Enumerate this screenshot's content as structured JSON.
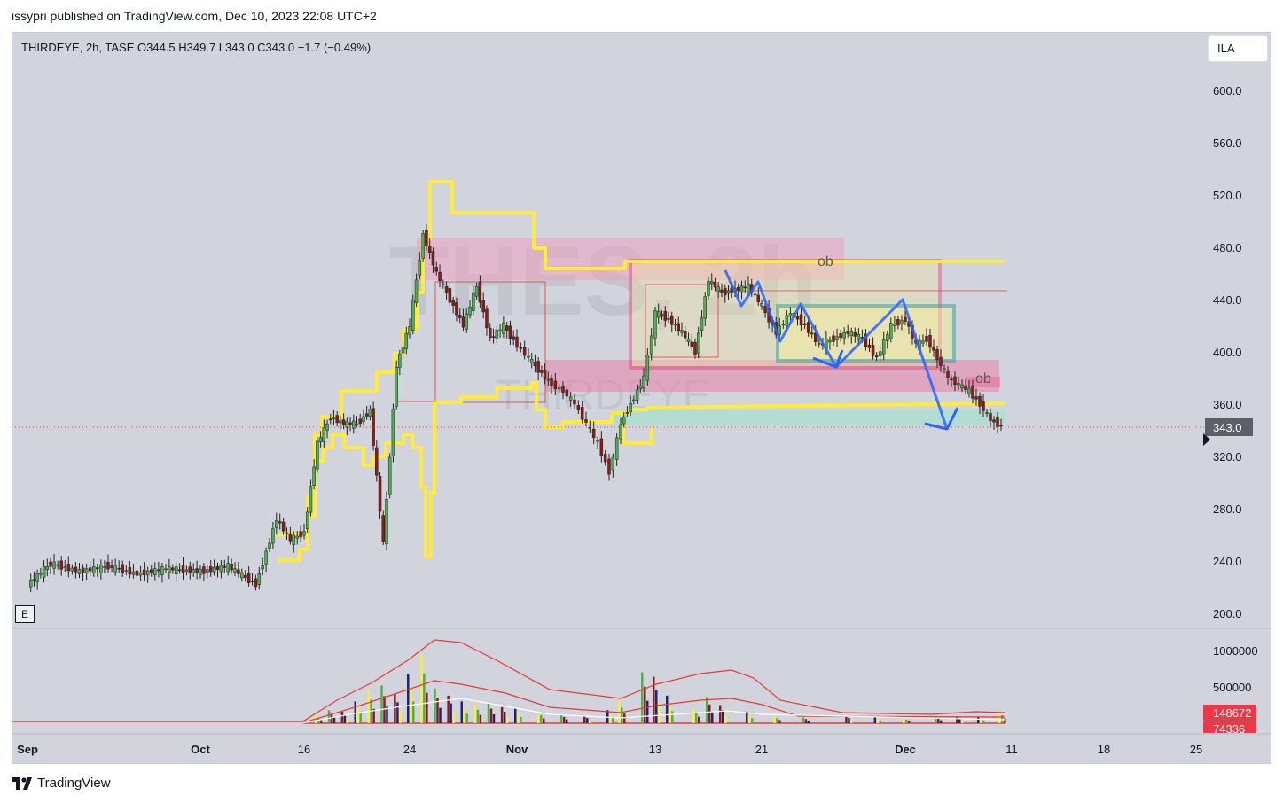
{
  "header": {
    "published": "issypri published on TradingView.com, Dec 10, 2023 22:08 UTC+2"
  },
  "legend": {
    "text": "THIRDEYE, 2h, TASE  O344.5  H349.7  L343.0  C343.0  −1.7 (−0.49%)"
  },
  "currency": "ILA",
  "e_button": "E",
  "brand": "TradingView",
  "watermark": {
    "big": "THES, 2h",
    "small": "THIRDEYE"
  },
  "colors": {
    "background": "#d1d4dc",
    "yellow": "#ffeb3b",
    "up": "#4caf50",
    "down": "#8b1a1a",
    "arrow": "#2962ff",
    "pink": "#e91e63",
    "teal": "#26a69a",
    "ma": "#e53935"
  },
  "annotations": {
    "ob1": "ob",
    "ob2": "ob"
  },
  "chart_data": {
    "type": "candlestick",
    "price_axis": {
      "ticks": [
        "600.0",
        "560.0",
        "520.0",
        "480.0",
        "440.0",
        "400.0",
        "360.0",
        "320.0",
        "280.0",
        "240.0",
        "200.0"
      ],
      "current_label": "343.0"
    },
    "volume_axis": {
      "ticks": [
        "1000000",
        "500000"
      ],
      "last_labels": [
        "148672",
        "74336"
      ]
    },
    "time_axis": {
      "ticks": [
        "Sep",
        "Oct",
        "16",
        "24",
        "Nov",
        "13",
        "21",
        "Dec",
        "11",
        "18",
        "25"
      ]
    },
    "last": {
      "open": 344.5,
      "high": 349.7,
      "low": 343.0,
      "close": 343.0,
      "change": -1.7,
      "change_pct": -0.49
    },
    "price_series": [
      {
        "d": "Sep 01",
        "c": 222
      },
      {
        "d": "Sep 05",
        "c": 238
      },
      {
        "d": "Sep 10",
        "c": 232
      },
      {
        "d": "Sep 15",
        "c": 236
      },
      {
        "d": "Sep 20",
        "c": 230
      },
      {
        "d": "Sep 25",
        "c": 234
      },
      {
        "d": "Oct 01",
        "c": 232
      },
      {
        "d": "Oct 05",
        "c": 236
      },
      {
        "d": "Oct 09",
        "c": 222
      },
      {
        "d": "Oct 12",
        "c": 272
      },
      {
        "d": "Oct 14",
        "c": 256
      },
      {
        "d": "Oct 16",
        "c": 262
      },
      {
        "d": "Oct 17",
        "c": 330
      },
      {
        "d": "Oct 18",
        "c": 350
      },
      {
        "d": "Oct 19",
        "c": 345
      },
      {
        "d": "Oct 20",
        "c": 345
      },
      {
        "d": "Oct 21",
        "c": 355
      },
      {
        "d": "Oct 22",
        "c": 253
      },
      {
        "d": "Oct 23",
        "c": 390
      },
      {
        "d": "Oct 24",
        "c": 420
      },
      {
        "d": "Oct 25",
        "c": 490
      },
      {
        "d": "Oct 26",
        "c": 460
      },
      {
        "d": "Oct 27",
        "c": 440
      },
      {
        "d": "Oct 28",
        "c": 420
      },
      {
        "d": "Oct 29",
        "c": 450
      },
      {
        "d": "Oct 30",
        "c": 410
      },
      {
        "d": "Oct 31",
        "c": 420
      },
      {
        "d": "Nov 01",
        "c": 405
      },
      {
        "d": "Nov 02",
        "c": 395
      },
      {
        "d": "Nov 04",
        "c": 375
      },
      {
        "d": "Nov 05",
        "c": 370
      },
      {
        "d": "Nov 06",
        "c": 360
      },
      {
        "d": "Nov 07",
        "c": 345
      },
      {
        "d": "Nov 08",
        "c": 330
      },
      {
        "d": "Nov 09",
        "c": 308
      },
      {
        "d": "Nov 10",
        "c": 345
      },
      {
        "d": "Nov 12",
        "c": 380
      },
      {
        "d": "Nov 13",
        "c": 430
      },
      {
        "d": "Nov 14",
        "c": 425
      },
      {
        "d": "Nov 15",
        "c": 415
      },
      {
        "d": "Nov 16",
        "c": 400
      },
      {
        "d": "Nov 17",
        "c": 455
      },
      {
        "d": "Nov 18",
        "c": 445
      },
      {
        "d": "Nov 20",
        "c": 450
      },
      {
        "d": "Nov 21",
        "c": 435
      },
      {
        "d": "Nov 22",
        "c": 415
      },
      {
        "d": "Nov 23",
        "c": 430
      },
      {
        "d": "Nov 24",
        "c": 420
      },
      {
        "d": "Nov 25",
        "c": 405
      },
      {
        "d": "Nov 26",
        "c": 410
      },
      {
        "d": "Nov 27",
        "c": 415
      },
      {
        "d": "Nov 28",
        "c": 410
      },
      {
        "d": "Nov 29",
        "c": 395
      },
      {
        "d": "Nov 30",
        "c": 420
      },
      {
        "d": "Dec 01",
        "c": 425
      },
      {
        "d": "Dec 02",
        "c": 405
      },
      {
        "d": "Dec 03",
        "c": 410
      },
      {
        "d": "Dec 04",
        "c": 395
      },
      {
        "d": "Dec 05",
        "c": 380
      },
      {
        "d": "Dec 06",
        "c": 375
      },
      {
        "d": "Dec 07",
        "c": 370
      },
      {
        "d": "Dec 08",
        "c": 360
      },
      {
        "d": "Dec 09",
        "c": 348
      },
      {
        "d": "Dec 10",
        "c": 343
      }
    ],
    "volume_bars": [
      {
        "d": "Oct 17",
        "v": 100000
      },
      {
        "d": "Oct 18",
        "v": 180000
      },
      {
        "d": "Oct 19",
        "v": 160000
      },
      {
        "d": "Oct 20",
        "v": 300000
      },
      {
        "d": "Oct 21",
        "v": 450000
      },
      {
        "d": "Oct 22",
        "v": 520000
      },
      {
        "d": "Oct 23",
        "v": 400000
      },
      {
        "d": "Oct 24",
        "v": 680000
      },
      {
        "d": "Oct 25",
        "v": 950000
      },
      {
        "d": "Oct 26",
        "v": 480000
      },
      {
        "d": "Oct 27",
        "v": 380000
      },
      {
        "d": "Oct 28",
        "v": 300000
      },
      {
        "d": "Oct 29",
        "v": 260000
      },
      {
        "d": "Oct 30",
        "v": 280000
      },
      {
        "d": "Oct 31",
        "v": 220000
      },
      {
        "d": "Nov 01",
        "v": 200000
      },
      {
        "d": "Nov 03",
        "v": 150000
      },
      {
        "d": "Nov 05",
        "v": 120000
      },
      {
        "d": "Nov 07",
        "v": 100000
      },
      {
        "d": "Nov 09",
        "v": 180000
      },
      {
        "d": "Nov 10",
        "v": 300000
      },
      {
        "d": "Nov 12",
        "v": 700000
      },
      {
        "d": "Nov 13",
        "v": 640000
      },
      {
        "d": "Nov 14",
        "v": 380000
      },
      {
        "d": "Nov 16",
        "v": 200000
      },
      {
        "d": "Nov 17",
        "v": 360000
      },
      {
        "d": "Nov 18",
        "v": 250000
      },
      {
        "d": "Nov 20",
        "v": 160000
      },
      {
        "d": "Nov 22",
        "v": 100000
      },
      {
        "d": "Nov 24",
        "v": 80000
      },
      {
        "d": "Nov 27",
        "v": 100000
      },
      {
        "d": "Nov 29",
        "v": 80000
      },
      {
        "d": "Dec 01",
        "v": 70000
      },
      {
        "d": "Dec 04",
        "v": 90000
      },
      {
        "d": "Dec 06",
        "v": 80000
      },
      {
        "d": "Dec 08",
        "v": 90000
      },
      {
        "d": "Dec 10",
        "v": 148672
      }
    ]
  }
}
